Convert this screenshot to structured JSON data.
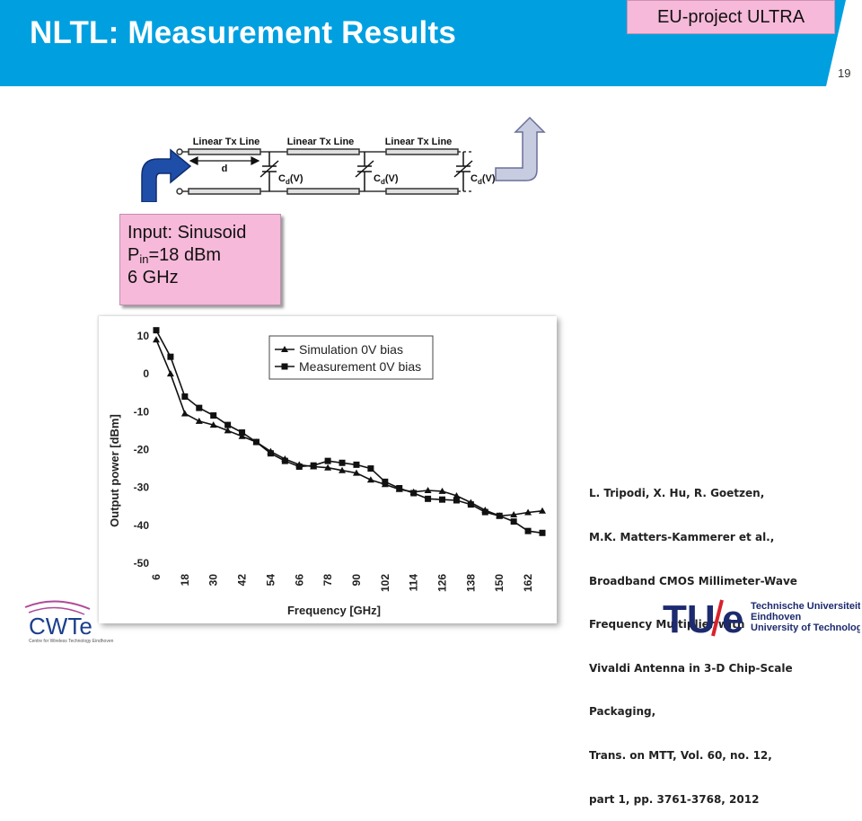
{
  "header": {
    "title": "NLTL: Measurement Results",
    "project_badge": "EU-project ULTRA",
    "page_number": "19",
    "bar_color": "#00a0e0"
  },
  "circuit": {
    "section_labels": [
      "Linear Tx Line",
      "Linear Tx Line",
      "Linear Tx Line"
    ],
    "length_label": "d",
    "capacitor_labels": [
      {
        "c": "C",
        "sub": "d",
        "v": "(V)"
      },
      {
        "c": "C",
        "sub": "d",
        "v": "(V)"
      },
      {
        "c": "C",
        "sub": "d",
        "v": "(V)"
      }
    ],
    "input_arrow_icon": "curved-arrow-right-icon",
    "output_arrow_icon": "bent-arrow-up-icon"
  },
  "input_box": {
    "line1": "Input: Sinusoid",
    "line2_prefix": "P",
    "line2_sub": "in",
    "line2_suffix": "=18 dBm",
    "line3": "6 GHz",
    "bg_color": "#f7b9d9"
  },
  "chart_data": {
    "type": "line",
    "xlabel": "Frequency [GHz]",
    "ylabel": "Output power [dBm]",
    "x_ticks": [
      "6",
      "18",
      "30",
      "42",
      "54",
      "66",
      "78",
      "90",
      "102",
      "114",
      "126",
      "138",
      "150",
      "162"
    ],
    "y_ticks": [
      "10",
      "0",
      "-10",
      "-20",
      "-30",
      "-40",
      "-50"
    ],
    "ylim": [
      -50,
      10
    ],
    "xlim": [
      6,
      168
    ],
    "legend_position": "top-center",
    "series": [
      {
        "name": "Simulation 0V bias",
        "marker": "triangle",
        "x": [
          6,
          12,
          18,
          24,
          30,
          36,
          42,
          48,
          54,
          60,
          66,
          72,
          78,
          84,
          90,
          96,
          102,
          108,
          114,
          120,
          126,
          132,
          138,
          144,
          150,
          156,
          162,
          168
        ],
        "y": [
          9,
          0,
          -10.5,
          -12.5,
          -13.5,
          -15,
          -16.5,
          -18,
          -20.5,
          -22.5,
          -24,
          -24.5,
          -24.8,
          -25.5,
          -26.2,
          -28,
          -29.2,
          -30.5,
          -31.2,
          -30.8,
          -31,
          -32.2,
          -34,
          -36,
          -37.5,
          -37.2,
          -36.6,
          -36.2
        ]
      },
      {
        "name": "Measurement 0V bias",
        "marker": "square",
        "x": [
          6,
          12,
          18,
          24,
          30,
          36,
          42,
          48,
          54,
          60,
          66,
          72,
          78,
          84,
          90,
          96,
          102,
          108,
          114,
          120,
          126,
          132,
          138,
          144,
          150,
          156,
          162,
          168
        ],
        "y": [
          11.5,
          4.5,
          -6,
          -9,
          -11,
          -13.5,
          -15.5,
          -18,
          -21,
          -23,
          -24.5,
          -24.2,
          -23,
          -23.5,
          -24,
          -25,
          -28.5,
          -30.2,
          -31.5,
          -33,
          -33.2,
          -33.4,
          -34.5,
          -36.5,
          -37.5,
          -39,
          -41.5,
          -42
        ]
      }
    ]
  },
  "reference": {
    "lines": [
      "L. Tripodi, X. Hu, R. Goetzen,",
      "M.K. Matters-Kammerer et al.,",
      "Broadband CMOS Millimeter-Wave",
      "Frequency Multiplier with",
      "Vivaldi Antenna in 3-D Chip-Scale",
      "Packaging,",
      "Trans. on MTT, Vol. 60, no. 12,",
      "part 1, pp. 3761-3768, 2012"
    ]
  },
  "logos": {
    "cwte": {
      "text": "CWTe",
      "subtitle": "Centre for Wireless Technology Eindhoven"
    },
    "tue": {
      "mark_left": "TU",
      "mark_right": "e",
      "line1": "Technische Universiteit",
      "line2": "Eindhoven",
      "line3": "University of Technology"
    }
  }
}
